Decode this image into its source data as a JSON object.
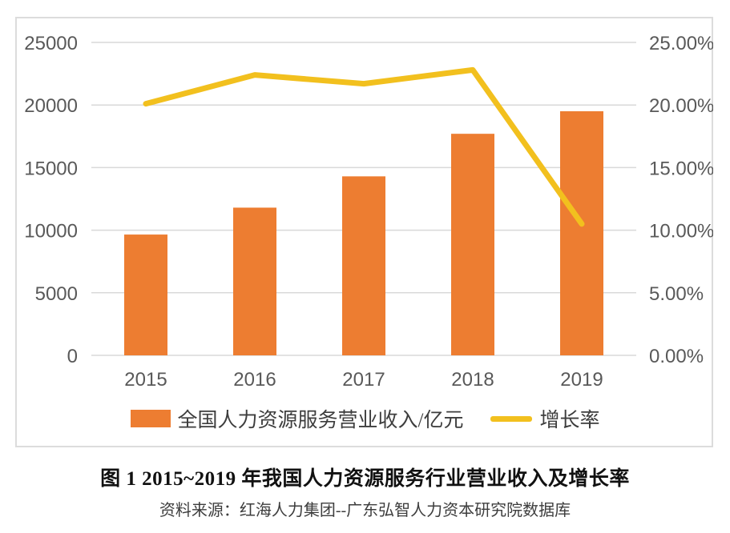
{
  "figure": {
    "caption": "图 1  2015~2019 年我国人力资源服务行业营业收入及增长率",
    "source": "资料来源：红海人力集团--广东弘智人力资本研究院数据库"
  },
  "colors": {
    "bar": "#ED7D31",
    "line": "#F2C01E",
    "grid": "#D9D9D9",
    "axis_text": "#595959",
    "frame_border": "#DCDCDC",
    "background": "#FFFFFF"
  },
  "chart_data": {
    "type": "combo",
    "subtypes": [
      "bar",
      "line"
    ],
    "categories": [
      "2015",
      "2016",
      "2017",
      "2018",
      "2019"
    ],
    "series": [
      {
        "name": "全国人力资源服务营业收入/亿元",
        "type": "bar",
        "axis": "left",
        "unit": "亿元",
        "color": "#ED7D31",
        "values": [
          9650,
          11800,
          14300,
          17700,
          19500
        ]
      },
      {
        "name": "增长率",
        "type": "line",
        "axis": "right",
        "unit": "%",
        "color": "#F2C01E",
        "values": [
          20.1,
          22.4,
          21.7,
          22.8,
          10.5
        ]
      }
    ],
    "left_axis": {
      "min": 0,
      "max": 25000,
      "step": 5000,
      "ticks": [
        "25000",
        "20000",
        "15000",
        "10000",
        "5000",
        "0"
      ]
    },
    "right_axis": {
      "min": 0,
      "max": 25,
      "step": 5,
      "ticks": [
        "25.00%",
        "20.00%",
        "15.00%",
        "10.00%",
        "5.00%",
        "0.00%"
      ]
    },
    "grid": "horizontal",
    "legend_position": "bottom"
  }
}
